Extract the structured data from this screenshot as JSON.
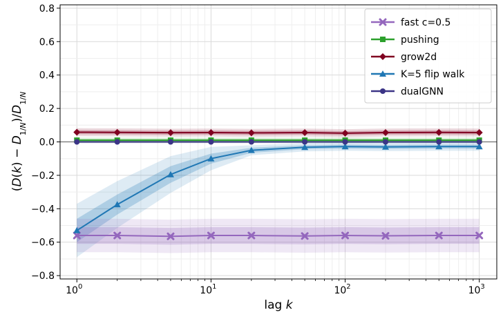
{
  "chart_data": {
    "type": "line",
    "xscale": "log",
    "xlabel_prefix": "lag ",
    "xlabel_var": "k",
    "ylabel": "(D(k) − D_{1/N})/D_{1/N}",
    "xlim": [
      0.75,
      1350
    ],
    "ylim": [
      -0.82,
      0.82
    ],
    "x_ticks": [
      1,
      10,
      100,
      1000
    ],
    "x_tick_labels": [
      {
        "base": "10",
        "exp": "0"
      },
      {
        "base": "10",
        "exp": "1"
      },
      {
        "base": "10",
        "exp": "2"
      },
      {
        "base": "10",
        "exp": "3"
      }
    ],
    "y_ticks": [
      -0.8,
      -0.6,
      -0.4,
      -0.2,
      0.0,
      0.2,
      0.4,
      0.6,
      0.8
    ],
    "y_tick_labels": [
      "−0.8",
      "−0.6",
      "−0.4",
      "−0.2",
      "0.0",
      "0.2",
      "0.4",
      "0.6",
      "0.8"
    ],
    "grid": true,
    "zero_line": true,
    "legend_position": "top-right",
    "x": [
      1,
      2,
      5,
      10,
      20,
      50,
      100,
      200,
      500,
      1000
    ],
    "series": [
      {
        "name": "fast c=0.5",
        "color": "#9467bd",
        "marker": "x",
        "values": [
          -0.56,
          -0.56,
          -0.565,
          -0.56,
          -0.56,
          -0.563,
          -0.56,
          -0.562,
          -0.56,
          -0.56
        ],
        "band_inner": 0.05,
        "band_outer": 0.1
      },
      {
        "name": "pushing",
        "color": "#2ca02c",
        "marker": "square",
        "values": [
          0.01,
          0.01,
          0.01,
          0.01,
          0.01,
          0.01,
          0.01,
          0.01,
          0.01,
          0.01
        ],
        "band_inner": 0.008,
        "band_outer": 0.016
      },
      {
        "name": "grow2d",
        "color": "#800020",
        "marker": "diamond",
        "values": [
          0.058,
          0.057,
          0.055,
          0.056,
          0.054,
          0.056,
          0.052,
          0.056,
          0.057,
          0.056
        ],
        "band_inner": 0.012,
        "band_outer": 0.024
      },
      {
        "name": "K=5 flip walk",
        "color": "#1f77b4",
        "marker": "triangle",
        "values": [
          -0.53,
          -0.375,
          -0.195,
          -0.1,
          -0.05,
          -0.032,
          -0.028,
          -0.03,
          -0.028,
          -0.028
        ],
        "band_inner_list": [
          0.07,
          0.06,
          0.05,
          0.03,
          0.015,
          0.012,
          0.012,
          0.012,
          0.012,
          0.012
        ],
        "band_outer_list": [
          0.16,
          0.14,
          0.11,
          0.07,
          0.03,
          0.025,
          0.025,
          0.025,
          0.025,
          0.025
        ]
      },
      {
        "name": "dualGNN",
        "color": "#3b3486",
        "marker": "circle",
        "values": [
          0.0,
          0.0,
          0.0,
          0.0,
          0.0,
          0.0,
          0.0,
          0.0,
          0.0,
          0.0
        ],
        "band_inner": 0.004,
        "band_outer": 0.008
      }
    ]
  }
}
